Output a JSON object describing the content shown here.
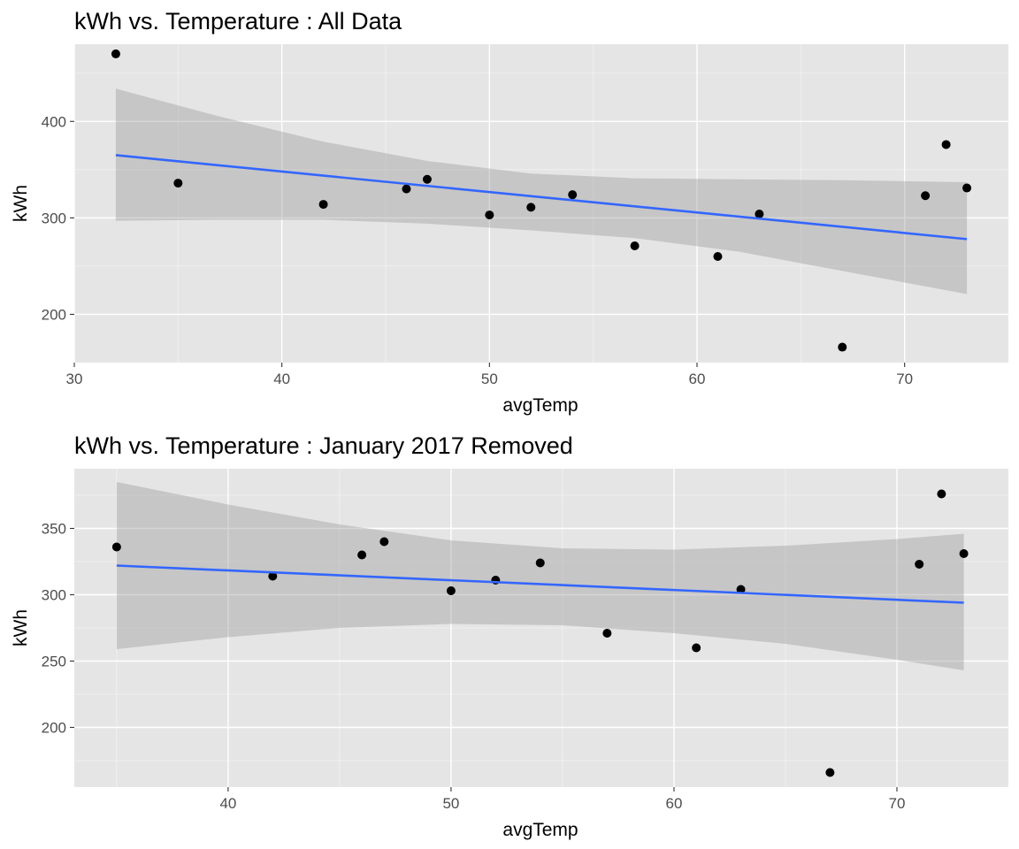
{
  "colors": {
    "panel_background": "#e5e5e5",
    "grid_major": "#ffffff",
    "grid_minor": "#f2f2f2",
    "point": "#000000",
    "fit_line": "#3366ff",
    "confidence_band": "#999999",
    "tick_text": "#4d4d4d",
    "text": "#000000"
  },
  "chart_data": [
    {
      "type": "scatter",
      "title": "kWh vs. Temperature : All Data",
      "xlabel": "avgTemp",
      "ylabel": "kWh",
      "xlim": [
        30,
        75
      ],
      "ylim": [
        150,
        480
      ],
      "x_ticks": [
        30,
        40,
        50,
        60,
        70
      ],
      "y_ticks": [
        200,
        300,
        400
      ],
      "grid": true,
      "points": [
        {
          "x": 32,
          "y": 470
        },
        {
          "x": 35,
          "y": 336
        },
        {
          "x": 42,
          "y": 314
        },
        {
          "x": 46,
          "y": 330
        },
        {
          "x": 47,
          "y": 340
        },
        {
          "x": 50,
          "y": 303
        },
        {
          "x": 52,
          "y": 311
        },
        {
          "x": 54,
          "y": 324
        },
        {
          "x": 57,
          "y": 271
        },
        {
          "x": 61,
          "y": 260
        },
        {
          "x": 63,
          "y": 304
        },
        {
          "x": 67,
          "y": 166
        },
        {
          "x": 71,
          "y": 323
        },
        {
          "x": 72,
          "y": 376
        },
        {
          "x": 73,
          "y": 331
        }
      ],
      "fit_line": {
        "x": [
          32,
          73
        ],
        "y": [
          365,
          278
        ]
      },
      "confidence_band": {
        "x": [
          32,
          37,
          42,
          47,
          52,
          57,
          62,
          67,
          73
        ],
        "upper": [
          434,
          405,
          379,
          359,
          346,
          341,
          340,
          339,
          337
        ],
        "lower": [
          297,
          298,
          298,
          294,
          287,
          279,
          265,
          245,
          221
        ]
      }
    },
    {
      "type": "scatter",
      "title": "kWh vs. Temperature : January 2017 Removed",
      "xlabel": "avgTemp",
      "ylabel": "kWh",
      "xlim": [
        33.1,
        75
      ],
      "ylim": [
        155,
        395
      ],
      "x_ticks": [
        40,
        50,
        60,
        70
      ],
      "y_ticks": [
        200,
        250,
        300,
        350
      ],
      "grid": true,
      "points": [
        {
          "x": 35,
          "y": 336
        },
        {
          "x": 42,
          "y": 314
        },
        {
          "x": 46,
          "y": 330
        },
        {
          "x": 47,
          "y": 340
        },
        {
          "x": 50,
          "y": 303
        },
        {
          "x": 52,
          "y": 311
        },
        {
          "x": 54,
          "y": 324
        },
        {
          "x": 57,
          "y": 271
        },
        {
          "x": 61,
          "y": 260
        },
        {
          "x": 63,
          "y": 304
        },
        {
          "x": 67,
          "y": 166
        },
        {
          "x": 71,
          "y": 323
        },
        {
          "x": 72,
          "y": 376
        },
        {
          "x": 73,
          "y": 331
        }
      ],
      "fit_line": {
        "x": [
          35,
          73
        ],
        "y": [
          322,
          294
        ]
      },
      "confidence_band": {
        "x": [
          35,
          40,
          45,
          50,
          55,
          60,
          65,
          70,
          73
        ],
        "upper": [
          385,
          368,
          353,
          341,
          335,
          334,
          337,
          342,
          346
        ],
        "lower": [
          259,
          268,
          275,
          278,
          277,
          271,
          263,
          251,
          243
        ]
      }
    }
  ]
}
